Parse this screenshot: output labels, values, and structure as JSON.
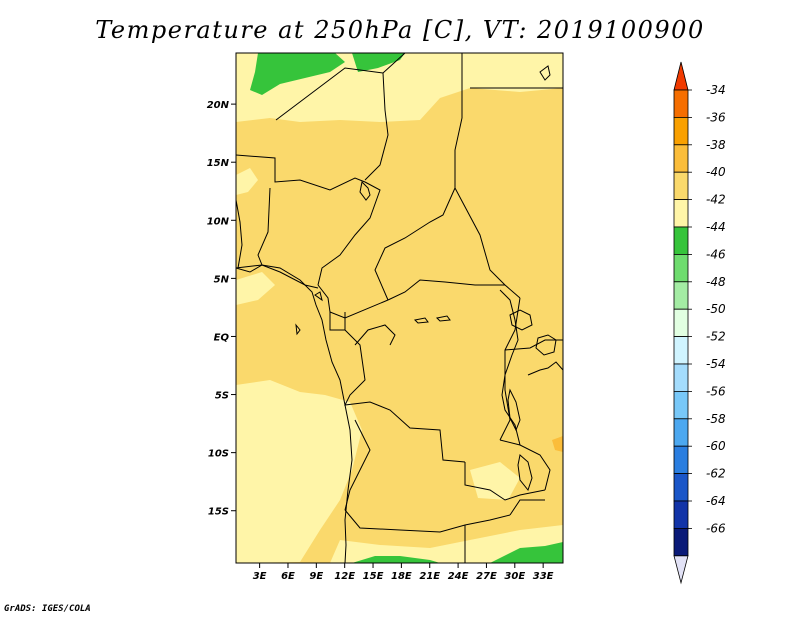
{
  "title": "Temperature at 250hPa [C], VT: 2019100900",
  "credit": "GrADS: IGES/COLA",
  "map": {
    "lat_ticks": [
      "20N",
      "15N",
      "10N",
      "5N",
      "EQ",
      "5S",
      "10S",
      "15S"
    ],
    "lon_ticks": [
      "3E",
      "6E",
      "9E",
      "12E",
      "15E",
      "18E",
      "21E",
      "24E",
      "27E",
      "30E",
      "33E"
    ],
    "lat_values": [
      20,
      15,
      10,
      5,
      0,
      -5,
      -10,
      -15
    ],
    "lon_values": [
      3,
      6,
      9,
      12,
      15,
      18,
      21,
      24,
      27,
      30,
      33
    ]
  },
  "legend": {
    "labels": [
      "-34",
      "-36",
      "-38",
      "-40",
      "-42",
      "-44",
      "-46",
      "-48",
      "-50",
      "-52",
      "-54",
      "-56",
      "-58",
      "-60",
      "-62",
      "-64",
      "-66"
    ],
    "colors": [
      "#f03a00",
      "#f56e00",
      "#f9a000",
      "#fbbd3a",
      "#fad96c",
      "#fff5a8",
      "#36c43b",
      "#6edc6e",
      "#a4eca4",
      "#e2ffe2",
      "#d0f4ff",
      "#a4dcfc",
      "#78c8f8",
      "#4ca8f0",
      "#2a7ee0",
      "#1a56c8",
      "#1234a8",
      "#0a1a78",
      "#e2e2f6"
    ]
  },
  "colors": {
    "band_42_40": "#fad96c",
    "band_44_42": "#fff5a8",
    "band_46_44": "#36c43b",
    "land_border": "#000000"
  }
}
